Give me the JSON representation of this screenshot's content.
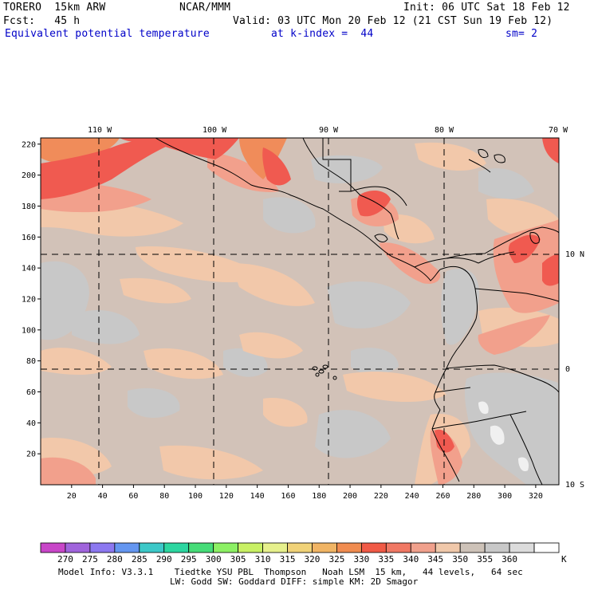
{
  "header": {
    "model_name": "TORERO  15km ARW",
    "center": "NCAR/MMM",
    "init": "Init: 06 UTC Sat 18 Feb 12",
    "fcst": "Fcst:   45 h",
    "valid": "Valid: 03 UTC Mon 20 Feb 12 (21 CST Sun 19 Feb 12)",
    "field": "Equivalent potential temperature",
    "level": "at k-index =  44",
    "smooth": "sm= 2"
  },
  "axes": {
    "x_ticks": [
      "20",
      "40",
      "60",
      "80",
      "100",
      "120",
      "140",
      "160",
      "180",
      "200",
      "220",
      "240",
      "260",
      "280",
      "300",
      "320"
    ],
    "y_ticks": [
      "20",
      "40",
      "60",
      "80",
      "100",
      "120",
      "140",
      "160",
      "180",
      "200",
      "220"
    ],
    "lon_labels": [
      "110 W",
      "100 W",
      "90 W",
      "80 W",
      "70 W"
    ],
    "lat_labels": [
      "10 N",
      "0",
      "10 S"
    ]
  },
  "colorbar": {
    "labels": [
      "270",
      "275",
      "280",
      "285",
      "290",
      "295",
      "300",
      "305",
      "310",
      "315",
      "320",
      "325",
      "330",
      "335",
      "340",
      "345",
      "350",
      "355",
      "360"
    ],
    "unit": "K",
    "colors": [
      "#c846c8",
      "#a064dc",
      "#8c78f0",
      "#6496f0",
      "#3cc8c8",
      "#2cd6a0",
      "#46dc78",
      "#8cf064",
      "#c8f064",
      "#e6f08c",
      "#f0d278",
      "#f0b464",
      "#f08c50",
      "#f05a46",
      "#f07864",
      "#f0a08c",
      "#f0c8aa",
      "#cdc2b8",
      "#c8c8c8",
      "#dcdcdc",
      "#ffffff"
    ]
  },
  "footer": {
    "line1": "Model Info: V3.3.1    Tiedtke YSU PBL  Thompson   Noah LSM  15 km,   44 levels,   64 sec",
    "line2": "LW: Godd SW: Goddard DIFF: simple KM: 2D Smagor"
  },
  "map_colors": {
    "base": "#d2c2b8",
    "warm": "#f2c8aa",
    "gray": "#c8c8c8",
    "light": "#f0f0f0",
    "salmon": "#f2a08c",
    "orange": "#f08c5a",
    "red": "#f05a50"
  }
}
